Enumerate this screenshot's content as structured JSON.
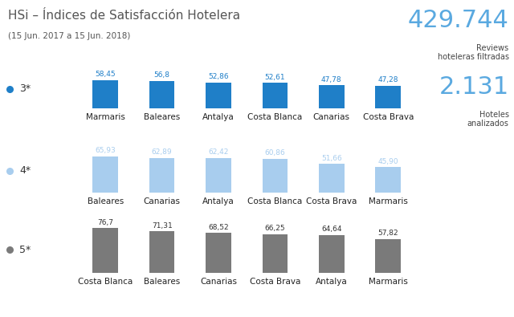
{
  "title": "HSi – Índices de Satisfacción Hotelera",
  "subtitle": "(15 Jun. 2017 a 15 Jun. 2018)",
  "stats": [
    {
      "value": "429.744",
      "label": "Reviews\nhoteleras filtradas"
    },
    {
      "value": "2.131",
      "label": "Hoteles\nanalizados"
    }
  ],
  "chart_data": [
    {
      "type": "bar",
      "title": "3*",
      "categories": [
        "Marmaris",
        "Baleares",
        "Antalya",
        "Costa Blanca",
        "Canarias",
        "Costa Brava"
      ],
      "values": [
        58.45,
        56.8,
        52.86,
        52.61,
        47.78,
        47.28
      ],
      "value_labels": [
        "58,45",
        "56,8",
        "52,86",
        "52,61",
        "47,78",
        "47,28"
      ],
      "color": "#1f7fc8",
      "data_labels": true,
      "tick_labels": false,
      "ylim": [
        0,
        80
      ],
      "yticks": [
        0,
        80
      ]
    },
    {
      "type": "bar",
      "title": "4*",
      "categories": [
        "Baleares",
        "Canarias",
        "Antalya",
        "Costa Blanca",
        "Costa Brava",
        "Marmaris"
      ],
      "values": [
        65.93,
        62.89,
        62.42,
        60.86,
        51.66,
        45.9
      ],
      "value_labels": [
        "65,93",
        "62,89",
        "62,42",
        "60,86",
        "51,66",
        "45,90"
      ],
      "color": "#a8cdee",
      "data_labels": true,
      "tick_labels": false,
      "ylim": [
        0,
        80
      ],
      "yticks": [
        0,
        80
      ]
    },
    {
      "type": "bar",
      "title": "5*",
      "categories": [
        "Costa Blanca",
        "Baleares",
        "Canarias",
        "Costa Brava",
        "Antalya",
        "Marmaris"
      ],
      "values": [
        76.7,
        71.31,
        68.52,
        66.25,
        64.64,
        57.82
      ],
      "value_labels": [
        "76,7",
        "71,31",
        "68,52",
        "66,25",
        "64,64",
        "57,82"
      ],
      "color": "#7a7a7a",
      "data_labels": true,
      "tick_labels": false,
      "ylim": [
        0,
        80
      ],
      "yticks": [
        0,
        80
      ]
    }
  ]
}
